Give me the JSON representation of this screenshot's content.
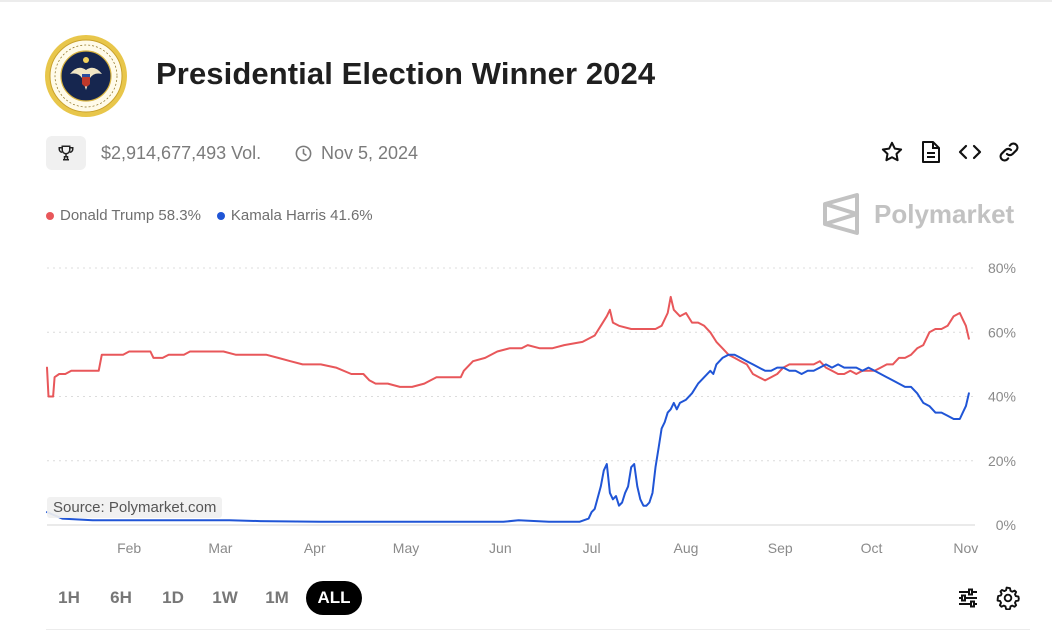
{
  "header": {
    "title": "Presidential Election Winner 2024",
    "volume": "$2,914,677,493 Vol.",
    "end_date": "Nov 5, 2024"
  },
  "legend": [
    {
      "label": "Donald Trump 58.3%",
      "color": "#e8575a"
    },
    {
      "label": "Kamala Harris 41.6%",
      "color": "#2055d6"
    }
  ],
  "brand": {
    "name": "Polymarket"
  },
  "source": "Source: Polymarket.com",
  "ranges": [
    {
      "label": "1H",
      "active": false
    },
    {
      "label": "6H",
      "active": false
    },
    {
      "label": "1D",
      "active": false
    },
    {
      "label": "1W",
      "active": false
    },
    {
      "label": "1M",
      "active": false
    },
    {
      "label": "ALL",
      "active": true
    }
  ],
  "chart_data": {
    "type": "line",
    "title": "Presidential Election Winner 2024",
    "xlabel": "",
    "ylabel": "",
    "x_domain": [
      0,
      305
    ],
    "ylim": [
      0,
      80
    ],
    "y_ticks": [
      0,
      20,
      40,
      60,
      80
    ],
    "y_tick_labels": [
      "0%",
      "20%",
      "40%",
      "60%",
      "80%"
    ],
    "x_ticks": [
      {
        "label": "Feb",
        "t": 27
      },
      {
        "label": "Mar",
        "t": 57
      },
      {
        "label": "Apr",
        "t": 88
      },
      {
        "label": "May",
        "t": 118
      },
      {
        "label": "Jun",
        "t": 149
      },
      {
        "label": "Jul",
        "t": 179
      },
      {
        "label": "Aug",
        "t": 210
      },
      {
        "label": "Sep",
        "t": 241
      },
      {
        "label": "Oct",
        "t": 271
      },
      {
        "label": "Nov",
        "t": 302
      }
    ],
    "series": [
      {
        "name": "Donald Trump",
        "color": "#e8575a",
        "points": [
          [
            0,
            49
          ],
          [
            0.5,
            40
          ],
          [
            2,
            40
          ],
          [
            2.5,
            46
          ],
          [
            4,
            47
          ],
          [
            6,
            47
          ],
          [
            8,
            48
          ],
          [
            12,
            48
          ],
          [
            17,
            48
          ],
          [
            18,
            53
          ],
          [
            25,
            53
          ],
          [
            27,
            54
          ],
          [
            34,
            54
          ],
          [
            35,
            52
          ],
          [
            38,
            52
          ],
          [
            40,
            53
          ],
          [
            45,
            53
          ],
          [
            47,
            54
          ],
          [
            58,
            54
          ],
          [
            62,
            53
          ],
          [
            68,
            53
          ],
          [
            72,
            53
          ],
          [
            76,
            52
          ],
          [
            80,
            51
          ],
          [
            84,
            50
          ],
          [
            90,
            50
          ],
          [
            95,
            49
          ],
          [
            100,
            47
          ],
          [
            104,
            47
          ],
          [
            106,
            45
          ],
          [
            108,
            44
          ],
          [
            112,
            44
          ],
          [
            116,
            43
          ],
          [
            120,
            43
          ],
          [
            124,
            44
          ],
          [
            128,
            46
          ],
          [
            132,
            46
          ],
          [
            136,
            46
          ],
          [
            137,
            48
          ],
          [
            140,
            51
          ],
          [
            144,
            52
          ],
          [
            148,
            54
          ],
          [
            152,
            55
          ],
          [
            156,
            55
          ],
          [
            158,
            56
          ],
          [
            162,
            55
          ],
          [
            166,
            55
          ],
          [
            170,
            56
          ],
          [
            176,
            57
          ],
          [
            180,
            59
          ],
          [
            182,
            62
          ],
          [
            184,
            65
          ],
          [
            185,
            67
          ],
          [
            186,
            63
          ],
          [
            188,
            62
          ],
          [
            192,
            61
          ],
          [
            196,
            61
          ],
          [
            200,
            61
          ],
          [
            202,
            62
          ],
          [
            204,
            66
          ],
          [
            205,
            71
          ],
          [
            206,
            67
          ],
          [
            208,
            65
          ],
          [
            210,
            66
          ],
          [
            212,
            63
          ],
          [
            214,
            63
          ],
          [
            216,
            62
          ],
          [
            218,
            60
          ],
          [
            220,
            57
          ],
          [
            222,
            55
          ],
          [
            224,
            53
          ],
          [
            226,
            52
          ],
          [
            228,
            51
          ],
          [
            230,
            50
          ],
          [
            232,
            47
          ],
          [
            234,
            46
          ],
          [
            236,
            45
          ],
          [
            238,
            46
          ],
          [
            240,
            47
          ],
          [
            242,
            49
          ],
          [
            244,
            50
          ],
          [
            246,
            50
          ],
          [
            250,
            50
          ],
          [
            252,
            50
          ],
          [
            254,
            51
          ],
          [
            256,
            49
          ],
          [
            258,
            48
          ],
          [
            260,
            47
          ],
          [
            262,
            47
          ],
          [
            264,
            48
          ],
          [
            266,
            47
          ],
          [
            268,
            48
          ],
          [
            270,
            48
          ],
          [
            272,
            48
          ],
          [
            274,
            49
          ],
          [
            276,
            50
          ],
          [
            278,
            50
          ],
          [
            280,
            52
          ],
          [
            282,
            52
          ],
          [
            284,
            53
          ],
          [
            286,
            55
          ],
          [
            288,
            56
          ],
          [
            290,
            60
          ],
          [
            292,
            61
          ],
          [
            294,
            61
          ],
          [
            296,
            62
          ],
          [
            298,
            65
          ],
          [
            300,
            66
          ],
          [
            301,
            64
          ],
          [
            302,
            62
          ],
          [
            303,
            58
          ]
        ]
      },
      {
        "name": "Kamala Harris",
        "color": "#2055d6",
        "points": [
          [
            0,
            4
          ],
          [
            5,
            2
          ],
          [
            15,
            1.5
          ],
          [
            30,
            1.5
          ],
          [
            45,
            1.5
          ],
          [
            60,
            1.5
          ],
          [
            70,
            1.2
          ],
          [
            90,
            1
          ],
          [
            110,
            1
          ],
          [
            130,
            1
          ],
          [
            150,
            1
          ],
          [
            155,
            1.5
          ],
          [
            165,
            1
          ],
          [
            175,
            1
          ],
          [
            178,
            2
          ],
          [
            179,
            4
          ],
          [
            180,
            5
          ],
          [
            182,
            12
          ],
          [
            183,
            17
          ],
          [
            184,
            19
          ],
          [
            185,
            10
          ],
          [
            186,
            8
          ],
          [
            187,
            9
          ],
          [
            188,
            6
          ],
          [
            189,
            7
          ],
          [
            190,
            10
          ],
          [
            191,
            12
          ],
          [
            192,
            18
          ],
          [
            193,
            19
          ],
          [
            194,
            12
          ],
          [
            195,
            8
          ],
          [
            196,
            6
          ],
          [
            197,
            6
          ],
          [
            198,
            7
          ],
          [
            199,
            10
          ],
          [
            200,
            18
          ],
          [
            201,
            24
          ],
          [
            202,
            30
          ],
          [
            203,
            32
          ],
          [
            204,
            35
          ],
          [
            205,
            36
          ],
          [
            206,
            38
          ],
          [
            207,
            36
          ],
          [
            208,
            38
          ],
          [
            210,
            39
          ],
          [
            212,
            41
          ],
          [
            214,
            44
          ],
          [
            216,
            46
          ],
          [
            218,
            48
          ],
          [
            219,
            47
          ],
          [
            220,
            50
          ],
          [
            222,
            52
          ],
          [
            224,
            53
          ],
          [
            226,
            53
          ],
          [
            228,
            52
          ],
          [
            230,
            51
          ],
          [
            232,
            50
          ],
          [
            234,
            49
          ],
          [
            236,
            48
          ],
          [
            238,
            48
          ],
          [
            240,
            49
          ],
          [
            242,
            49
          ],
          [
            244,
            48
          ],
          [
            246,
            48
          ],
          [
            248,
            47
          ],
          [
            250,
            48
          ],
          [
            252,
            48
          ],
          [
            254,
            49
          ],
          [
            256,
            50
          ],
          [
            258,
            49
          ],
          [
            260,
            50
          ],
          [
            262,
            49
          ],
          [
            264,
            49
          ],
          [
            266,
            49
          ],
          [
            268,
            48
          ],
          [
            270,
            49
          ],
          [
            272,
            48
          ],
          [
            274,
            47
          ],
          [
            276,
            46
          ],
          [
            278,
            45
          ],
          [
            280,
            44
          ],
          [
            282,
            43
          ],
          [
            284,
            43
          ],
          [
            286,
            41
          ],
          [
            288,
            38
          ],
          [
            290,
            37
          ],
          [
            292,
            35
          ],
          [
            294,
            35
          ],
          [
            296,
            34
          ],
          [
            298,
            33
          ],
          [
            300,
            33
          ],
          [
            301,
            35
          ],
          [
            302,
            37
          ],
          [
            303,
            41
          ]
        ]
      }
    ]
  }
}
